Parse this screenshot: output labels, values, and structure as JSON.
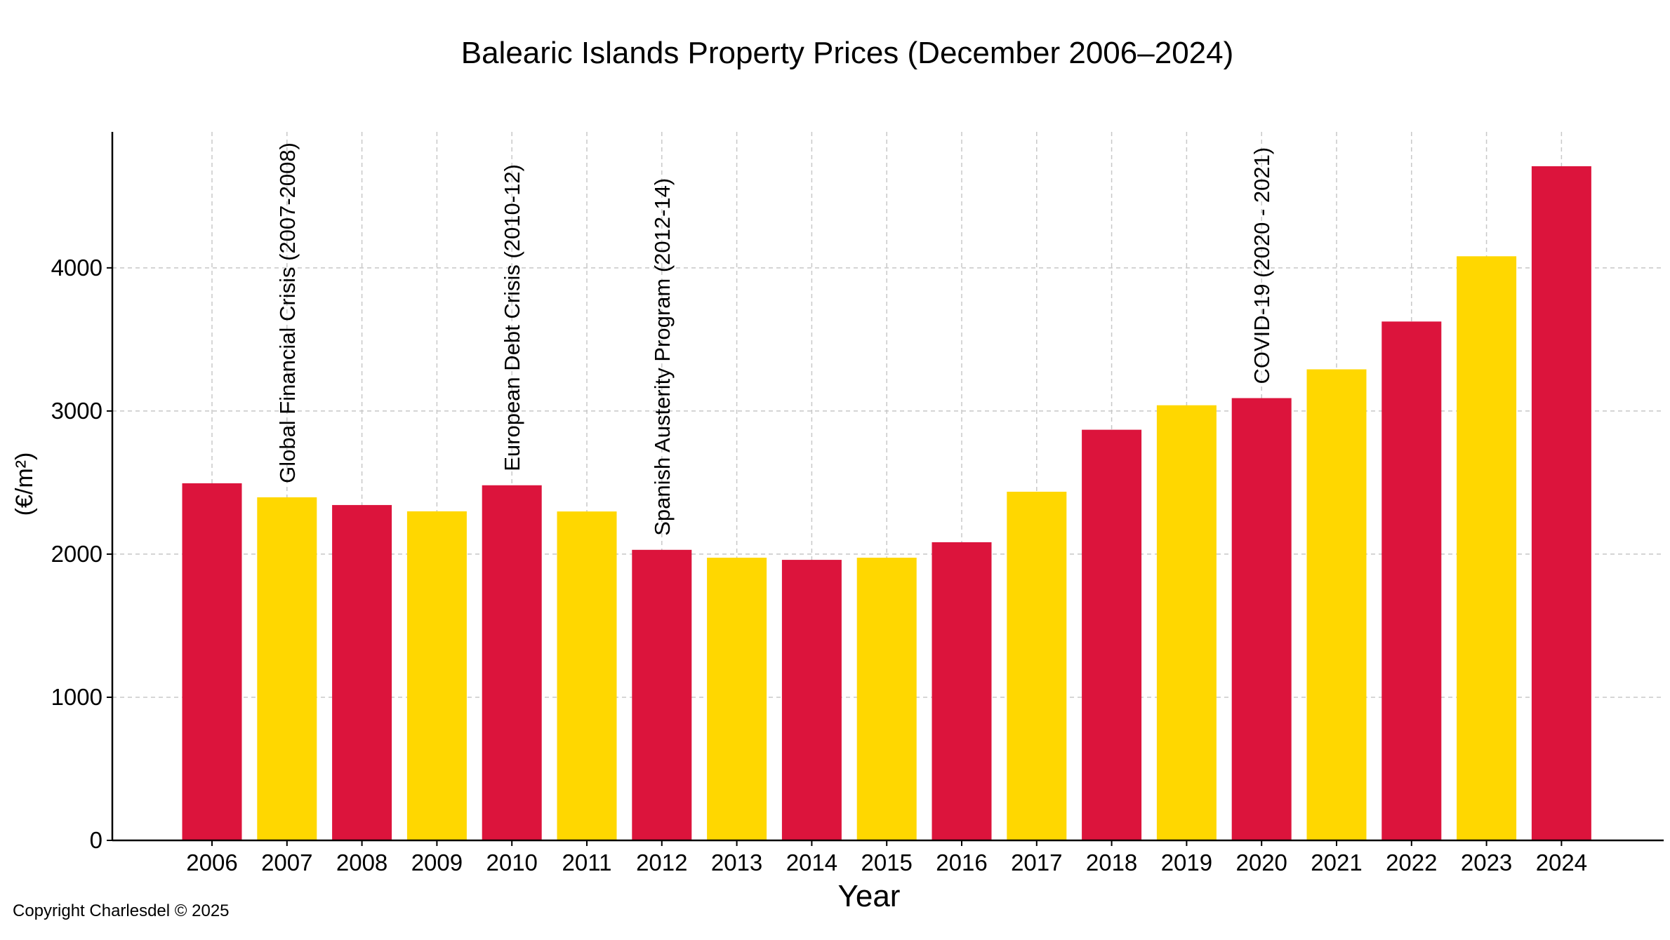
{
  "copyright": "Copyright Charlesdel © 2025",
  "chart_data": {
    "type": "bar",
    "title": "Balearic Islands Property Prices (December 2006–2024)",
    "xlabel": "Year",
    "ylabel": "(€/m²)",
    "categories": [
      "2006",
      "2007",
      "2008",
      "2009",
      "2010",
      "2011",
      "2012",
      "2013",
      "2014",
      "2015",
      "2016",
      "2017",
      "2018",
      "2019",
      "2020",
      "2021",
      "2022",
      "2023",
      "2024"
    ],
    "values": [
      2495,
      2397,
      2343,
      2299,
      2481,
      2298,
      2030,
      1975,
      1960,
      1975,
      2083,
      2436,
      2869,
      3040,
      3090,
      3291,
      3625,
      4081,
      4710
    ],
    "colors": [
      "#dc143c",
      "#ffd700",
      "#dc143c",
      "#ffd700",
      "#dc143c",
      "#ffd700",
      "#dc143c",
      "#ffd700",
      "#dc143c",
      "#ffd700",
      "#dc143c",
      "#ffd700",
      "#dc143c",
      "#ffd700",
      "#dc143c",
      "#ffd700",
      "#dc143c",
      "#ffd700",
      "#dc143c"
    ],
    "ylim": [
      0,
      4950
    ],
    "yticks": [
      0,
      1000,
      2000,
      3000,
      4000
    ],
    "grid": true,
    "annotations": [
      {
        "text": "Global Financial Crisis (2007-2008)",
        "category": "2007"
      },
      {
        "text": "European Debt Crisis (2010-12)",
        "category": "2010"
      },
      {
        "text": "Spanish Austerity Program (2012-14)",
        "category": "2012"
      },
      {
        "text": "COVID-19 (2020 - 2021)",
        "category": "2020"
      }
    ]
  }
}
